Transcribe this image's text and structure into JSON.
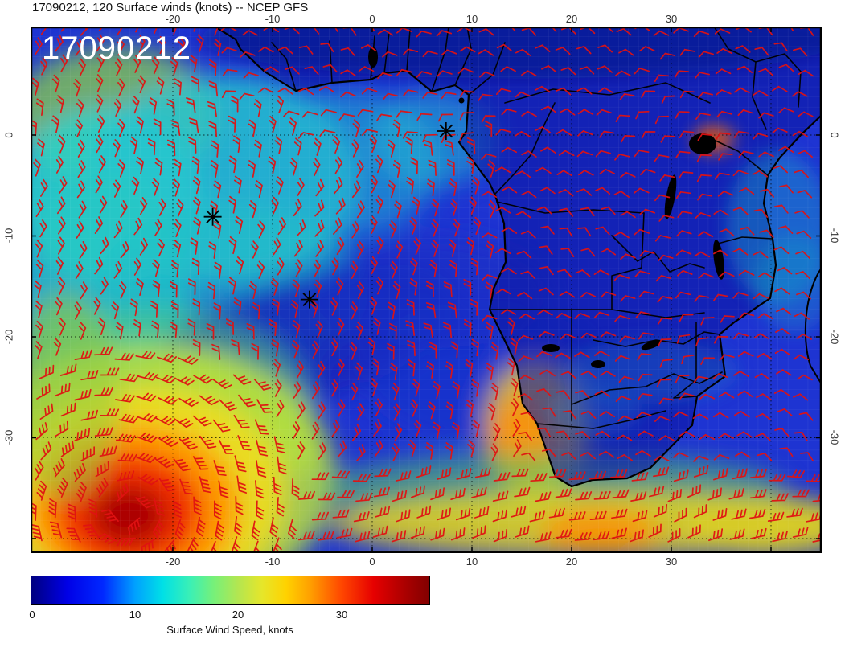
{
  "title": "17090212, 120 Surface winds (knots) -- NCEP GFS",
  "overlay_label": "17090212",
  "map": {
    "x_ticks": [
      "-20",
      "-10",
      "0",
      "10",
      "20",
      "30"
    ],
    "y_ticks": [
      "0",
      "-10",
      "-20",
      "-30"
    ],
    "wind_barb_color": "#e01212",
    "coastline_color": "#000000",
    "storm_markers": [
      {
        "lon": 7.4,
        "lat": 0.4
      },
      {
        "lon": -16.0,
        "lat": -8.1
      },
      {
        "lon": -6.3,
        "lat": -16.3
      }
    ]
  },
  "colorbar": {
    "ticks": [
      "0",
      "10",
      "20",
      "30"
    ],
    "caption": "Surface Wind Speed, knots",
    "min": 0,
    "max": 38,
    "stops": [
      [
        "#000080",
        0
      ],
      [
        "#0000e6",
        9
      ],
      [
        "#0028ff",
        18
      ],
      [
        "#00a0ff",
        26
      ],
      [
        "#00e0e6",
        33
      ],
      [
        "#3cf0b4",
        40
      ],
      [
        "#78f078",
        46
      ],
      [
        "#b4e650",
        52
      ],
      [
        "#e6e62a",
        58
      ],
      [
        "#ffd200",
        64
      ],
      [
        "#ffa000",
        70
      ],
      [
        "#ff4600",
        78
      ],
      [
        "#e60000",
        86
      ],
      [
        "#aa0000",
        94
      ],
      [
        "#820000",
        100
      ]
    ]
  },
  "chart_data": {
    "type": "heatmap",
    "title": "17090212, 120 Surface winds (knots) -- NCEP GFS",
    "variable": "Surface Wind Speed",
    "units": "knots",
    "model": "NCEP GFS",
    "run": "17090212",
    "forecast_hour": 120,
    "lon_range": [
      -28,
      45
    ],
    "lat_range": [
      -42,
      11
    ],
    "colorbar_ticks": [
      0,
      10,
      20,
      30
    ],
    "features": [
      {
        "name": "extratropical-cyclone-high-winds",
        "lon": -24,
        "lat": -36,
        "peak_knots": 38
      },
      {
        "name": "southeast-trade-wind-band",
        "lon": -15,
        "lat": -5,
        "knots": 16
      },
      {
        "name": "southern-ocean-westerly-band",
        "lat": -40,
        "knots": 24
      },
      {
        "name": "benguela-coastal-jet",
        "lon": 15,
        "lat": -30,
        "knots": 24
      },
      {
        "name": "calm-winds-over-interior-africa",
        "knots": 5
      },
      {
        "name": "storm-genesis-markers",
        "count": 3
      }
    ]
  }
}
